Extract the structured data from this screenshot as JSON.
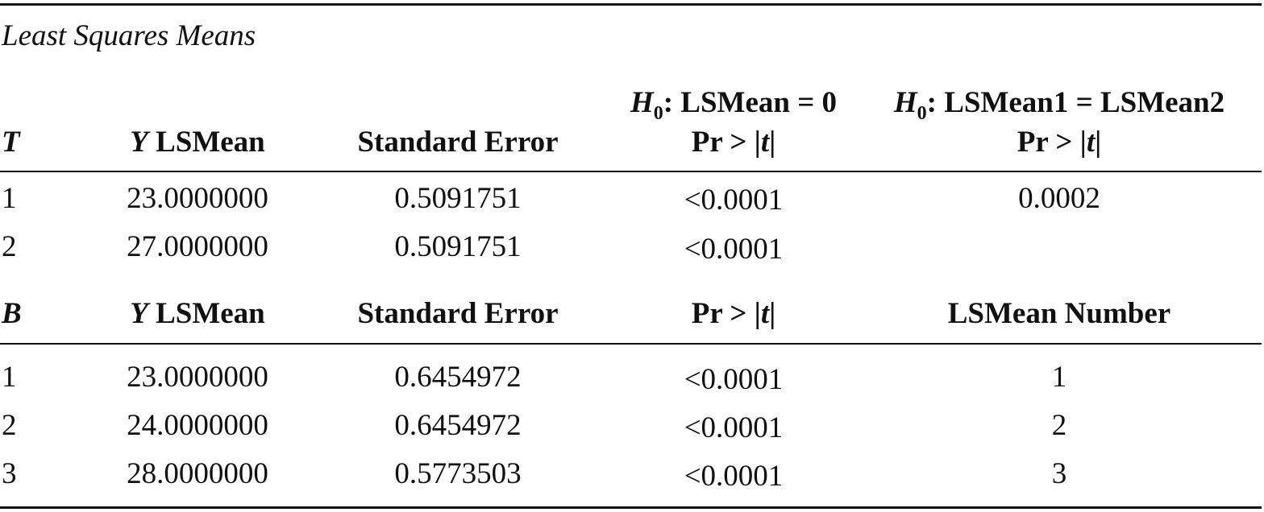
{
  "table": {
    "caption": "Least Squares Means",
    "section1": {
      "headers": {
        "factor": "T",
        "lsmean_var": "Y",
        "lsmean_label": "LSMean",
        "stderr": "Standard Error",
        "h0_prefix": "H",
        "h0_sub": "0",
        "h0_lsmean0": ": LSMean = 0",
        "h0_lsmean12": ": LSMean1 = LSMean2",
        "pr_gt": "Pr > |",
        "pr_t": "t",
        "pr_end": "|"
      },
      "rows": [
        {
          "level": "1",
          "lsmean": "23.0000000",
          "stderr": "0.5091751",
          "pr": "<0.0001",
          "pr_diff": "0.0002"
        },
        {
          "level": "2",
          "lsmean": "27.0000000",
          "stderr": "0.5091751",
          "pr": "<0.0001",
          "pr_diff": ""
        }
      ]
    },
    "section2": {
      "headers": {
        "factor": "B",
        "lsmean_var": "Y",
        "lsmean_label": "LSMean",
        "stderr": "Standard Error",
        "pr_gt": "Pr > |",
        "pr_t": "t",
        "pr_end": "|",
        "number": "LSMean Number"
      },
      "rows": [
        {
          "level": "1",
          "lsmean": "23.0000000",
          "stderr": "0.6454972",
          "pr": "<0.0001",
          "number": "1"
        },
        {
          "level": "2",
          "lsmean": "24.0000000",
          "stderr": "0.6454972",
          "pr": "<0.0001",
          "number": "2"
        },
        {
          "level": "3",
          "lsmean": "28.0000000",
          "stderr": "0.5773503",
          "pr": "<0.0001",
          "number": "3"
        }
      ]
    }
  }
}
